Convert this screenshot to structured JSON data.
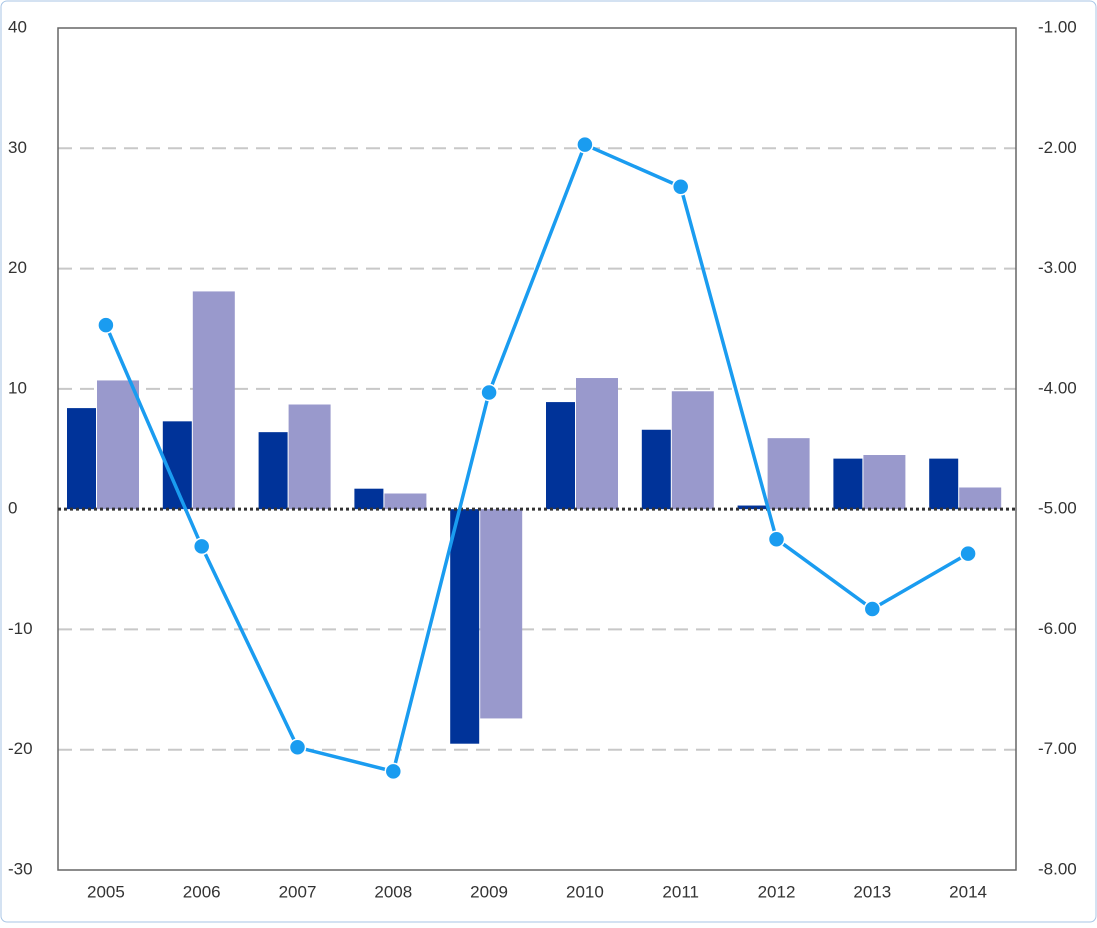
{
  "chart_data": {
    "type": "bar-line",
    "categories": [
      "2005",
      "2006",
      "2007",
      "2008",
      "2009",
      "2010",
      "2011",
      "2012",
      "2013",
      "2014"
    ],
    "series": [
      {
        "type": "bar",
        "color": "#003399",
        "values": [
          8.4,
          7.3,
          6.4,
          1.7,
          -19.5,
          8.9,
          6.6,
          0.3,
          4.2,
          4.2
        ]
      },
      {
        "type": "bar",
        "color": "#9999cc",
        "values": [
          10.7,
          18.1,
          8.7,
          1.3,
          -17.4,
          10.9,
          9.8,
          5.9,
          4.5,
          1.8
        ]
      },
      {
        "type": "line",
        "axis": "y2",
        "color": "#1a9cf0",
        "values": [
          -3.47,
          -5.31,
          -6.98,
          -7.18,
          -4.03,
          -1.97,
          -2.32,
          -5.25,
          -5.83,
          -5.37
        ]
      }
    ],
    "ylim": [
      -30,
      40
    ],
    "yticks": [
      -30,
      -20,
      -10,
      0,
      10,
      20,
      30,
      40
    ],
    "y2lim": [
      -8,
      -1
    ],
    "y2ticks": [
      {
        "value": -8,
        "label": "-8.00"
      },
      {
        "value": -7,
        "label": "-7.00"
      },
      {
        "value": -6,
        "label": "-6.00"
      },
      {
        "value": -5,
        "label": "-5.00"
      },
      {
        "value": -4,
        "label": "-4.00"
      },
      {
        "value": -3,
        "label": "-3.00"
      },
      {
        "value": -2,
        "label": "-2.00"
      },
      {
        "value": -1,
        "label": "-1.00"
      }
    ],
    "grid": true
  }
}
